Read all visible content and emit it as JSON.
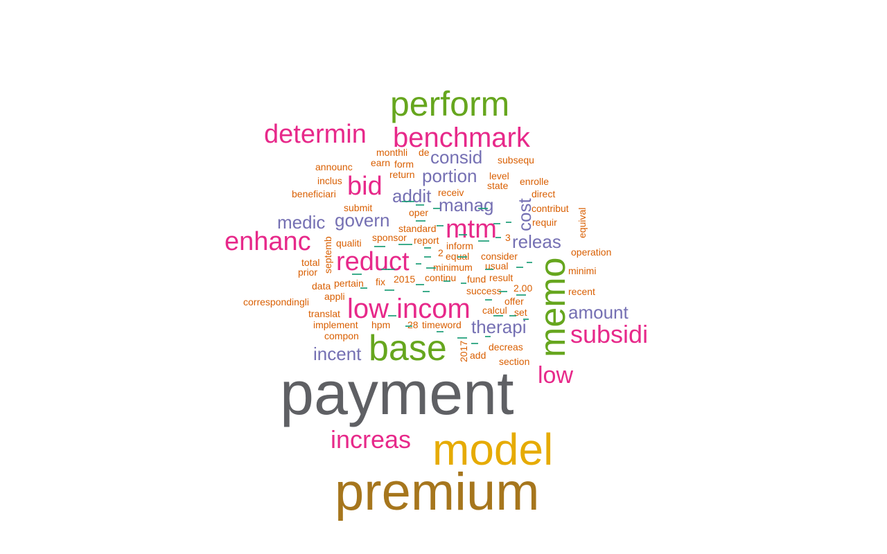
{
  "colors": {
    "gray": "#5f6064",
    "brown": "#a6761d",
    "gold": "#e6ab02",
    "green": "#66a61e",
    "magenta": "#e7298a",
    "purple": "#7570b3",
    "orange": "#d95f02",
    "teal": "#1b9e77"
  },
  "words": [
    {
      "text": "payment",
      "color": "gray"
    },
    {
      "text": "premium",
      "color": "brown"
    },
    {
      "text": "model",
      "color": "gold"
    },
    {
      "text": "base",
      "color": "green"
    },
    {
      "text": "memo",
      "color": "green"
    },
    {
      "text": "perform",
      "color": "green"
    },
    {
      "text": "benchmark",
      "color": "magenta"
    },
    {
      "text": "determin",
      "color": "magenta"
    },
    {
      "text": "low incom",
      "color": "magenta"
    },
    {
      "text": "reduct",
      "color": "magenta"
    },
    {
      "text": "mtm",
      "color": "magenta"
    },
    {
      "text": "enhanc",
      "color": "magenta"
    },
    {
      "text": "subsidi",
      "color": "magenta"
    },
    {
      "text": "increas",
      "color": "magenta"
    },
    {
      "text": "bid",
      "color": "magenta"
    },
    {
      "text": "low",
      "color": "magenta"
    },
    {
      "text": "consid",
      "color": "purple"
    },
    {
      "text": "portion",
      "color": "purple"
    },
    {
      "text": "addit",
      "color": "purple"
    },
    {
      "text": "manag",
      "color": "purple"
    },
    {
      "text": "cost",
      "color": "purple"
    },
    {
      "text": "govern",
      "color": "purple"
    },
    {
      "text": "medic",
      "color": "purple"
    },
    {
      "text": "releas",
      "color": "purple"
    },
    {
      "text": "amount",
      "color": "purple"
    },
    {
      "text": "therapi",
      "color": "purple"
    },
    {
      "text": "incent",
      "color": "purple"
    },
    {
      "text": "monthli",
      "color": "orange"
    },
    {
      "text": "de",
      "color": "orange"
    },
    {
      "text": "earn",
      "color": "orange"
    },
    {
      "text": "form",
      "color": "orange"
    },
    {
      "text": "subsequ",
      "color": "orange"
    },
    {
      "text": "announc",
      "color": "orange"
    },
    {
      "text": "return",
      "color": "orange"
    },
    {
      "text": "level",
      "color": "orange"
    },
    {
      "text": "inclus",
      "color": "orange"
    },
    {
      "text": "state",
      "color": "orange"
    },
    {
      "text": "enrolle",
      "color": "orange"
    },
    {
      "text": "receiv",
      "color": "orange"
    },
    {
      "text": "beneficiari",
      "color": "orange"
    },
    {
      "text": "direct",
      "color": "orange"
    },
    {
      "text": "submit",
      "color": "orange"
    },
    {
      "text": "oper",
      "color": "orange"
    },
    {
      "text": "contribut",
      "color": "orange"
    },
    {
      "text": "equival",
      "color": "orange"
    },
    {
      "text": "requir",
      "color": "orange"
    },
    {
      "text": "standard",
      "color": "orange"
    },
    {
      "text": "sponsor",
      "color": "orange"
    },
    {
      "text": "report",
      "color": "orange"
    },
    {
      "text": "qualiti",
      "color": "orange"
    },
    {
      "text": "septemb",
      "color": "orange"
    },
    {
      "text": "3",
      "color": "orange"
    },
    {
      "text": "inform",
      "color": "orange"
    },
    {
      "text": "operation",
      "color": "orange"
    },
    {
      "text": "2",
      "color": "orange"
    },
    {
      "text": "equal",
      "color": "orange"
    },
    {
      "text": "consider",
      "color": "orange"
    },
    {
      "text": "total",
      "color": "orange"
    },
    {
      "text": "minimum",
      "color": "orange"
    },
    {
      "text": "usual",
      "color": "orange"
    },
    {
      "text": "minimi",
      "color": "orange"
    },
    {
      "text": "prior",
      "color": "orange"
    },
    {
      "text": "2015",
      "color": "orange"
    },
    {
      "text": "continu",
      "color": "orange"
    },
    {
      "text": "fund",
      "color": "orange"
    },
    {
      "text": "result",
      "color": "orange"
    },
    {
      "text": "data",
      "color": "orange"
    },
    {
      "text": "pertain",
      "color": "orange"
    },
    {
      "text": "fix",
      "color": "orange"
    },
    {
      "text": "2.00",
      "color": "orange"
    },
    {
      "text": "recent",
      "color": "orange"
    },
    {
      "text": "appli",
      "color": "orange"
    },
    {
      "text": "success",
      "color": "orange"
    },
    {
      "text": "offer",
      "color": "orange"
    },
    {
      "text": "correspondingli",
      "color": "orange"
    },
    {
      "text": "calcul",
      "color": "orange"
    },
    {
      "text": "set",
      "color": "orange"
    },
    {
      "text": "translat",
      "color": "orange"
    },
    {
      "text": "implement",
      "color": "orange"
    },
    {
      "text": "hpm",
      "color": "orange"
    },
    {
      "text": "28",
      "color": "orange"
    },
    {
      "text": "timeword",
      "color": "orange"
    },
    {
      "text": "compon",
      "color": "orange"
    },
    {
      "text": "2017",
      "color": "orange"
    },
    {
      "text": "decreas",
      "color": "orange"
    },
    {
      "text": "add",
      "color": "orange"
    },
    {
      "text": "section",
      "color": "orange"
    }
  ],
  "filler_color": "teal"
}
